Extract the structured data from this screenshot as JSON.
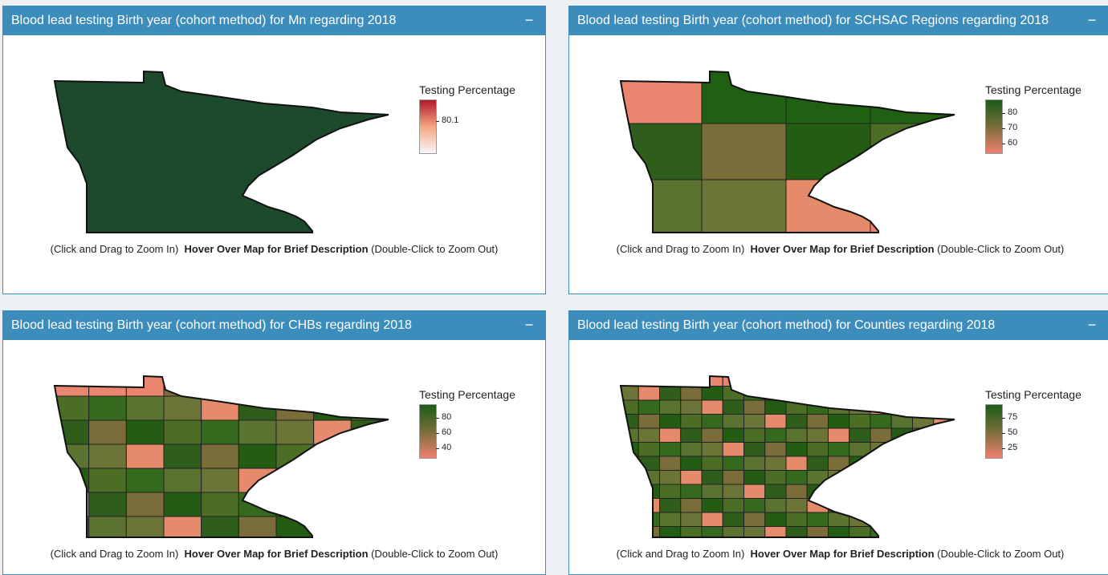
{
  "panels": [
    {
      "title": "Blood lead testing Birth year (cohort method) for Mn regarding 2018",
      "legend": {
        "title": "Testing Percentage",
        "ticks": [
          "80.1"
        ],
        "gradient": [
          "#b2182b",
          "#f4a582",
          "#f7f7f7"
        ]
      },
      "fill": "#1e4a2c"
    },
    {
      "title": "Blood lead testing Birth year (cohort method) for SCHSAC Regions regarding 2018",
      "legend": {
        "title": "Testing Percentage",
        "ticks": [
          "80",
          "70",
          "60"
        ],
        "gradient": [
          "#1a5c1a",
          "#7a6d3a",
          "#f08070"
        ]
      },
      "fill": "#5a7a2a"
    },
    {
      "title": "Blood lead testing Birth year (cohort method) for CHBs regarding 2018",
      "legend": {
        "title": "Testing Percentage",
        "ticks": [
          "80",
          "60",
          "40"
        ],
        "gradient": [
          "#1a5c1a",
          "#7a6d3a",
          "#f08070"
        ]
      },
      "fill": "#4a6e22"
    },
    {
      "title": "Blood lead testing Birth year (cohort method) for Counties regarding 2018",
      "legend": {
        "title": "Testing Percentage",
        "ticks": [
          "75",
          "50",
          "25"
        ],
        "gradient": [
          "#1a5c1a",
          "#7a6d3a",
          "#f08070"
        ]
      },
      "fill": "#3e6a20"
    }
  ],
  "caption": {
    "left": "(Click and Drag to Zoom In)",
    "middle": "Hover Over Map for Brief Description",
    "right": "(Double-Click to Zoom Out)"
  },
  "collapse_label": "−"
}
